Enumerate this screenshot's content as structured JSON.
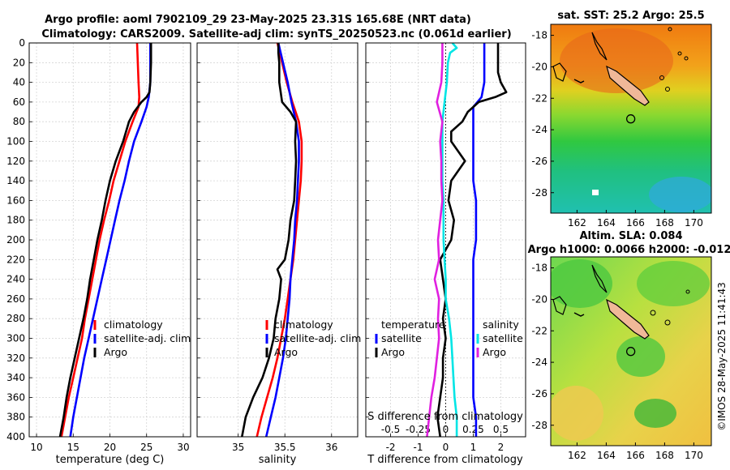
{
  "title": {
    "line1": "Argo profile: aoml 7902109_29 23-May-2025 23.31S 165.68E (NRT data)",
    "line2": "Climatology: CARS2009. Satellite-adj clim: synTS_20250523.nc (0.061d earlier)"
  },
  "sst_map_title": "sat. SST: 25.2 Argo: 25.5",
  "sla_map_title1": "Altim. SLA: 0.084",
  "sla_map_title2": "Argo h1000: 0.0066 h2000: -0.012",
  "timestamp": "©IMOS 28-May-2025 11:41:43",
  "colors": {
    "climatology": "#ff0000",
    "satellite": "#0000ff",
    "argo": "#000000",
    "sal_satellite": "#00e5e5",
    "sal_argo": "#e020e0"
  },
  "depth_axis": {
    "ylim": [
      0,
      400
    ],
    "ticks": [
      "0",
      "20",
      "40",
      "60",
      "80",
      "100",
      "120",
      "140",
      "160",
      "180",
      "200",
      "220",
      "240",
      "260",
      "280",
      "300",
      "320",
      "340",
      "360",
      "380",
      "400"
    ]
  },
  "legends": {
    "panel1": [
      "climatology",
      "satellite-adj. clim",
      "Argo"
    ],
    "panel2": [
      "climatology",
      "satellite-adj. clim",
      "Argo"
    ],
    "panel3_temp_title": "temperature",
    "panel3_temp": [
      "satellite",
      "Argo"
    ],
    "panel3_sal_title": "salinity",
    "panel3_sal": [
      "satellite",
      "Argo"
    ]
  },
  "chart_data": [
    {
      "type": "line",
      "name": "temperature profile",
      "xlabel": "temperature (deg C)",
      "xlim": [
        9,
        31
      ],
      "xticks": [
        "10",
        "15",
        "20",
        "25",
        "30"
      ],
      "xtick_values": [
        10,
        15,
        20,
        25,
        30
      ],
      "series": [
        {
          "name": "climatology",
          "depth": [
            0,
            20,
            40,
            55,
            65,
            80,
            100,
            120,
            140,
            160,
            180,
            200,
            220,
            240,
            260,
            280,
            300,
            320,
            340,
            360,
            380,
            400
          ],
          "values": [
            23.7,
            23.8,
            23.9,
            24.0,
            23.9,
            23.1,
            22.1,
            21.3,
            20.5,
            19.9,
            19.2,
            18.6,
            18.1,
            17.6,
            17.1,
            16.6,
            16.2,
            15.6,
            15.0,
            14.4,
            13.9,
            13.4
          ]
        },
        {
          "name": "satellite-adj. clim",
          "depth": [
            0,
            20,
            40,
            55,
            65,
            80,
            100,
            120,
            140,
            160,
            180,
            200,
            220,
            240,
            260,
            280,
            300,
            320,
            340,
            360,
            380,
            400
          ],
          "values": [
            25.5,
            25.5,
            25.5,
            25.3,
            25.0,
            24.3,
            23.3,
            22.6,
            22.0,
            21.3,
            20.7,
            20.1,
            19.5,
            18.9,
            18.3,
            17.7,
            17.1,
            16.5,
            16.0,
            15.5,
            15.0,
            14.6
          ]
        },
        {
          "name": "Argo",
          "depth": [
            0,
            20,
            40,
            50,
            55,
            60,
            70,
            80,
            100,
            120,
            140,
            160,
            180,
            200,
            220,
            240,
            260,
            280,
            300,
            320,
            340,
            360,
            380,
            400
          ],
          "values": [
            25.6,
            25.6,
            25.5,
            25.4,
            25.0,
            24.3,
            23.3,
            22.6,
            21.8,
            20.8,
            20.0,
            19.4,
            18.9,
            18.3,
            17.8,
            17.3,
            16.9,
            16.4,
            15.8,
            15.2,
            14.6,
            14.1,
            13.7,
            13.2
          ]
        }
      ]
    },
    {
      "type": "line",
      "name": "salinity profile",
      "xlabel": "salinity",
      "xlim": [
        34.56,
        36.28
      ],
      "xticks": [
        "35",
        "35.5",
        "36"
      ],
      "xtick_values": [
        35,
        35.5,
        36
      ],
      "series": [
        {
          "name": "climatology",
          "depth": [
            0,
            20,
            40,
            60,
            80,
            100,
            120,
            140,
            160,
            180,
            200,
            220,
            240,
            260,
            280,
            300,
            320,
            340,
            360,
            380,
            400
          ],
          "values": [
            35.42,
            35.47,
            35.52,
            35.58,
            35.65,
            35.68,
            35.68,
            35.67,
            35.65,
            35.63,
            35.61,
            35.59,
            35.56,
            35.53,
            35.5,
            35.46,
            35.42,
            35.37,
            35.31,
            35.25,
            35.2
          ]
        },
        {
          "name": "satellite-adj. clim",
          "depth": [
            0,
            20,
            40,
            60,
            80,
            100,
            120,
            140,
            160,
            180,
            200,
            220,
            240,
            260,
            280,
            300,
            320,
            340,
            360,
            380,
            400
          ],
          "values": [
            35.43,
            35.48,
            35.53,
            35.57,
            35.62,
            35.65,
            35.65,
            35.64,
            35.63,
            35.61,
            35.6,
            35.58,
            35.56,
            35.55,
            35.53,
            35.51,
            35.48,
            35.44,
            35.4,
            35.35,
            35.3
          ]
        },
        {
          "name": "Argo",
          "depth": [
            0,
            10,
            20,
            40,
            60,
            70,
            80,
            100,
            120,
            140,
            160,
            180,
            200,
            220,
            230,
            240,
            260,
            280,
            300,
            320,
            340,
            360,
            380,
            400
          ],
          "values": [
            35.43,
            35.43,
            35.44,
            35.44,
            35.47,
            35.56,
            35.62,
            35.61,
            35.62,
            35.61,
            35.6,
            35.56,
            35.54,
            35.5,
            35.42,
            35.46,
            35.44,
            35.4,
            35.38,
            35.33,
            35.26,
            35.16,
            35.08,
            35.04
          ]
        }
      ]
    },
    {
      "type": "line",
      "name": "difference from climatology",
      "xlabel": "T difference from climatology",
      "xlim_T": [
        -2.9,
        2.9
      ],
      "xticks_T": [
        "-2",
        "-1",
        "0",
        "1",
        "2"
      ],
      "xtick_values_T": [
        -2,
        -1,
        0,
        1,
        2
      ],
      "xlabel_S": "S difference from climatology",
      "xticks_S": [
        "-0.5",
        "-0.25",
        "0",
        "0.25",
        "0.5"
      ],
      "xtick_values_S": [
        -0.5,
        -0.25,
        0,
        0.25,
        0.5
      ],
      "series": [
        {
          "name": "temperature satellite",
          "depth": [
            0,
            40,
            55,
            65,
            80,
            100,
            120,
            140,
            160,
            180,
            200,
            220,
            240,
            260,
            280,
            300,
            320,
            340,
            360,
            380,
            400
          ],
          "values": [
            1.4,
            1.4,
            1.3,
            1.0,
            1.0,
            1.0,
            1.0,
            1.0,
            1.1,
            1.1,
            1.1,
            1.0,
            1.0,
            1.0,
            1.0,
            1.0,
            1.0,
            1.0,
            1.0,
            1.1,
            1.1
          ]
        },
        {
          "name": "temperature Argo",
          "depth": [
            0,
            30,
            40,
            50,
            55,
            60,
            70,
            80,
            90,
            100,
            120,
            140,
            160,
            180,
            200,
            220,
            240,
            260,
            280,
            300,
            320,
            340,
            360,
            380,
            400
          ],
          "values": [
            1.9,
            1.9,
            2.0,
            2.2,
            1.8,
            1.2,
            0.8,
            0.6,
            0.2,
            0.2,
            0.7,
            0.2,
            0.1,
            0.3,
            0.2,
            -0.2,
            -0.1,
            0.0,
            -0.1,
            0.0,
            -0.1,
            -0.1,
            -0.2,
            -0.3,
            -0.2
          ]
        },
        {
          "name": "salinity satellite",
          "depth": [
            0,
            5,
            10,
            20,
            40,
            60,
            80,
            100,
            120,
            140,
            160,
            180,
            200,
            220,
            240,
            260,
            280,
            300,
            320,
            340,
            360,
            380,
            400
          ],
          "values": [
            0.06,
            0.1,
            0.04,
            0.02,
            0.01,
            -0.01,
            -0.03,
            -0.03,
            -0.03,
            -0.03,
            -0.02,
            -0.02,
            -0.02,
            -0.01,
            0.0,
            0.0,
            0.03,
            0.05,
            0.06,
            0.07,
            0.08,
            0.1,
            0.1
          ]
        },
        {
          "name": "salinity Argo",
          "depth": [
            0,
            20,
            40,
            60,
            80,
            100,
            120,
            140,
            160,
            180,
            200,
            220,
            240,
            260,
            280,
            300,
            320,
            340,
            360,
            380,
            400
          ],
          "values": [
            -0.03,
            -0.03,
            -0.04,
            -0.08,
            -0.03,
            -0.05,
            -0.04,
            -0.04,
            -0.03,
            -0.05,
            -0.07,
            -0.06,
            -0.1,
            -0.06,
            -0.07,
            -0.06,
            -0.08,
            -0.1,
            -0.13,
            -0.15,
            -0.17
          ]
        }
      ]
    },
    {
      "type": "heatmap",
      "name": "SST map",
      "title": "sat. SST: 25.2 Argo: 25.5",
      "xticks": [
        "162",
        "164",
        "166",
        "168",
        "170"
      ],
      "xtick_values": [
        162,
        164,
        166,
        168,
        170
      ],
      "yticks": [
        "-18",
        "-20",
        "-22",
        "-24",
        "-26",
        "-28"
      ],
      "ytick_values": [
        -18,
        -20,
        -22,
        -24,
        -26,
        -28
      ],
      "xlim": [
        160.2,
        171.2
      ],
      "ylim": [
        -29.3,
        -17.3
      ],
      "argo_position": {
        "lon": 165.68,
        "lat": -23.31
      }
    },
    {
      "type": "heatmap",
      "name": "SLA map",
      "title": "Altim. SLA: 0.084",
      "xticks": [
        "162",
        "164",
        "166",
        "168",
        "170"
      ],
      "xtick_values": [
        162,
        164,
        166,
        168,
        170
      ],
      "yticks": [
        "-18",
        "-20",
        "-22",
        "-24",
        "-26",
        "-28"
      ],
      "ytick_values": [
        -18,
        -20,
        -22,
        -24,
        -26,
        -28
      ],
      "xlim": [
        160.2,
        171.2
      ],
      "ylim": [
        -29.3,
        -17.3
      ],
      "argo_position": {
        "lon": 165.68,
        "lat": -23.31
      }
    }
  ]
}
